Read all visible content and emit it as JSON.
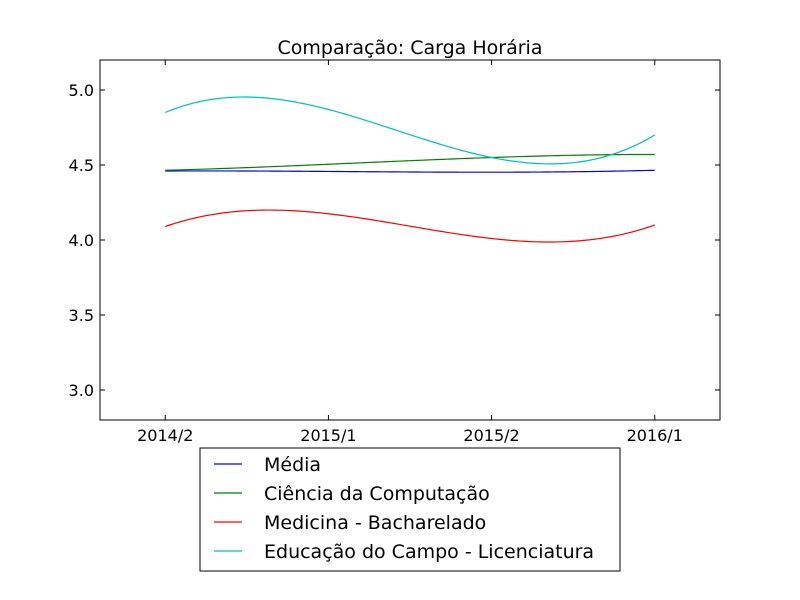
{
  "chart_data": {
    "type": "line",
    "title": "Comparação: Carga Horária",
    "xlabel": "",
    "ylabel": "",
    "categories": [
      "2014/2",
      "2015/1",
      "2015/2",
      "2016/1"
    ],
    "xlim": [
      -0.4,
      3.4
    ],
    "ylim": [
      2.8,
      5.2
    ],
    "yticks": [
      3.0,
      3.5,
      4.0,
      4.5,
      5.0
    ],
    "ytick_labels": [
      "3.0",
      "3.5",
      "4.0",
      "4.5",
      "5.0"
    ],
    "grid": false,
    "legend_position": "below",
    "series": [
      {
        "name": "Média",
        "color": "#0000ff",
        "values": [
          4.46,
          4.457,
          4.452,
          4.465
        ]
      },
      {
        "name": "Ciência da Computação",
        "color": "#008000",
        "values": [
          4.465,
          4.505,
          4.55,
          4.57
        ]
      },
      {
        "name": "Medicina - Bacharelado",
        "color": "#ff0000",
        "values": [
          4.09,
          4.175,
          4.01,
          4.1
        ]
      },
      {
        "name": "Educação do Campo - Licenciatura",
        "color": "#00bfbf",
        "values": [
          4.85,
          4.87,
          4.55,
          4.7
        ]
      }
    ]
  }
}
